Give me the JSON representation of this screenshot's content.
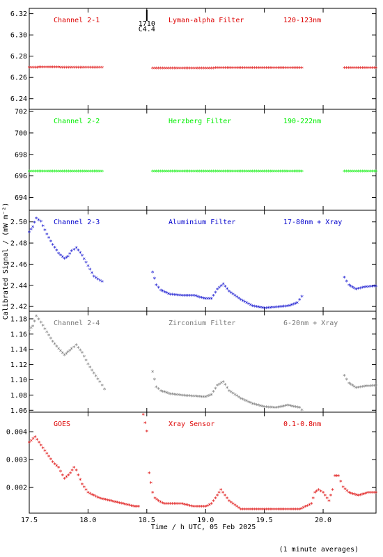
{
  "chart_data": {
    "type": "scatter",
    "xlabel": "Time / h UTC, 05 Feb 2025",
    "ylabel": "Calibrated Signal / (mW m⁻²)",
    "xlim": [
      17.5,
      20.45
    ],
    "xticks": [
      "17.5",
      "18.0",
      "18.5",
      "19.0",
      "19.5",
      "20.0"
    ],
    "footnote": "(1 minute averages)",
    "marker": "*",
    "marker_annotation": {
      "x": 18.5,
      "line1": "1710",
      "line2": "C4.4"
    },
    "panels": [
      {
        "channel": "Channel 2-1",
        "filter": "Lyman-alpha Filter",
        "band": "120-123nm",
        "color": "#dd0000",
        "ylim": [
          6.23,
          6.325
        ],
        "yticks": [
          "6.24",
          "6.26",
          "6.28",
          "6.30",
          "6.32"
        ],
        "segments": [
          {
            "x": [
              17.5,
              17.6,
              17.7,
              17.8,
              17.9,
              18.0,
              18.12
            ],
            "y": [
              6.269,
              6.2692,
              6.2692,
              6.2691,
              6.2691,
              6.2691,
              6.269
            ]
          },
          {
            "x": [
              18.55,
              18.7,
              18.9,
              19.1,
              19.3,
              19.5,
              19.7,
              19.82
            ],
            "y": [
              6.2684,
              6.2684,
              6.2684,
              6.2685,
              6.2685,
              6.2686,
              6.2686,
              6.2687
            ]
          },
          {
            "x": [
              20.18,
              20.3,
              20.45
            ],
            "y": [
              6.2685,
              6.2685,
              6.2685
            ]
          }
        ]
      },
      {
        "channel": "Channel 2-2",
        "filter": "Herzberg Filter",
        "band": "190-222nm",
        "color": "#00ee00",
        "ylim": [
          692.8,
          702.2
        ],
        "yticks": [
          "694",
          "696",
          "698",
          "700",
          "702"
        ],
        "segments": [
          {
            "x": [
              17.5,
              17.8,
              18.12
            ],
            "y": [
              696.4,
              696.4,
              696.4
            ]
          },
          {
            "x": [
              18.55,
              19.0,
              19.5,
              19.82
            ],
            "y": [
              696.4,
              696.4,
              696.4,
              696.4
            ]
          },
          {
            "x": [
              20.18,
              20.3,
              20.45
            ],
            "y": [
              696.4,
              696.4,
              696.4
            ]
          }
        ]
      },
      {
        "channel": "Channel 2-3",
        "filter": "Aluminium Filter",
        "band": "17-80nm + Xray",
        "color": "#0000cc",
        "ylim": [
          2.4155,
          2.511
        ],
        "yticks": [
          "2.42",
          "2.44",
          "2.46",
          "2.48",
          "2.50"
        ],
        "segments": [
          {
            "x": [
              17.5,
              17.53,
              17.56,
              17.6,
              17.65,
              17.7,
              17.75,
              17.8,
              17.83,
              17.86,
              17.9,
              17.95,
              18.0,
              18.05,
              18.12
            ],
            "y": [
              2.49,
              2.495,
              2.503,
              2.5,
              2.488,
              2.478,
              2.47,
              2.465,
              2.467,
              2.472,
              2.475,
              2.468,
              2.458,
              2.448,
              2.443
            ]
          },
          {
            "x": [
              18.55,
              18.58,
              18.62,
              18.7,
              18.8,
              18.9,
              19.0,
              19.05,
              19.1,
              19.15,
              19.2,
              19.3,
              19.4,
              19.5,
              19.6,
              19.7,
              19.78,
              19.82
            ],
            "y": [
              2.452,
              2.44,
              2.435,
              2.431,
              2.43,
              2.43,
              2.427,
              2.427,
              2.436,
              2.441,
              2.434,
              2.426,
              2.42,
              2.418,
              2.419,
              2.42,
              2.423,
              2.429
            ]
          },
          {
            "x": [
              20.18,
              20.22,
              20.28,
              20.35,
              20.45
            ],
            "y": [
              2.447,
              2.44,
              2.436,
              2.438,
              2.439
            ]
          }
        ]
      },
      {
        "channel": "Channel 2-4",
        "filter": "Zirconium Filter",
        "band": "6-20nm + Xray",
        "color": "#777777",
        "ylim": [
          1.0575,
          1.19
        ],
        "yticks": [
          "1.06",
          "1.08",
          "1.10",
          "1.12",
          "1.14",
          "1.16",
          "1.18"
        ],
        "segments": [
          {
            "x": [
              17.5,
              17.53,
              17.56,
              17.6,
              17.65,
              17.7,
              17.75,
              17.8,
              17.83,
              17.86,
              17.9,
              17.95,
              18.0,
              18.05,
              18.1,
              18.14
            ],
            "y": [
              1.165,
              1.17,
              1.183,
              1.175,
              1.162,
              1.15,
              1.14,
              1.132,
              1.136,
              1.14,
              1.145,
              1.135,
              1.12,
              1.108,
              1.097,
              1.087
            ]
          },
          {
            "x": [
              18.55,
              18.58,
              18.62,
              18.7,
              18.8,
              18.9,
              19.0,
              19.05,
              19.1,
              19.15,
              19.2,
              19.3,
              19.4,
              19.5,
              19.6,
              19.7,
              19.8,
              19.82
            ],
            "y": [
              1.11,
              1.09,
              1.085,
              1.081,
              1.079,
              1.078,
              1.077,
              1.08,
              1.092,
              1.097,
              1.085,
              1.075,
              1.068,
              1.064,
              1.063,
              1.066,
              1.063,
              1.06
            ]
          },
          {
            "x": [
              20.18,
              20.22,
              20.28,
              20.35,
              20.45
            ],
            "y": [
              1.105,
              1.095,
              1.089,
              1.091,
              1.092
            ]
          }
        ]
      },
      {
        "channel": "GOES",
        "filter": "Xray Sensor",
        "band": "0.1-0.8nm",
        "color": "#dd0000",
        "ylim": [
          0.00108,
          0.0047
        ],
        "yticks": [
          "0.002",
          "0.003",
          "0.004"
        ],
        "segments": [
          {
            "x": [
              17.5,
              17.55,
              17.6,
              17.65,
              17.7,
              17.75,
              17.8,
              17.85,
              17.88,
              17.9,
              17.95,
              18.0,
              18.1,
              18.2,
              18.3,
              18.4,
              18.43
            ],
            "y": [
              0.0036,
              0.0038,
              0.0035,
              0.0032,
              0.0029,
              0.0027,
              0.0023,
              0.0025,
              0.0027,
              0.0026,
              0.0021,
              0.0018,
              0.0016,
              0.0015,
              0.0014,
              0.0013,
              0.0013
            ]
          },
          {
            "x": [
              18.47,
              18.5,
              18.52,
              18.55,
              18.57,
              18.6,
              18.65,
              18.7,
              18.8,
              18.9,
              19.0,
              19.05,
              19.1,
              19.13,
              19.2,
              19.3,
              19.4,
              19.5,
              19.6,
              19.7,
              19.8,
              19.85,
              19.9,
              19.93,
              19.96,
              20.0,
              20.05,
              20.08,
              20.1,
              20.13,
              20.17,
              20.22,
              20.3,
              20.38,
              20.45
            ],
            "y": [
              0.0046,
              0.004,
              0.0025,
              0.0018,
              0.0016,
              0.0015,
              0.0014,
              0.0014,
              0.0014,
              0.0013,
              0.0013,
              0.0014,
              0.0017,
              0.0019,
              0.0015,
              0.0012,
              0.0012,
              0.0012,
              0.0012,
              0.0012,
              0.0012,
              0.0013,
              0.0014,
              0.0018,
              0.0019,
              0.0018,
              0.0015,
              0.0019,
              0.0024,
              0.0024,
              0.002,
              0.0018,
              0.0017,
              0.0018,
              0.0018
            ]
          }
        ]
      }
    ]
  }
}
